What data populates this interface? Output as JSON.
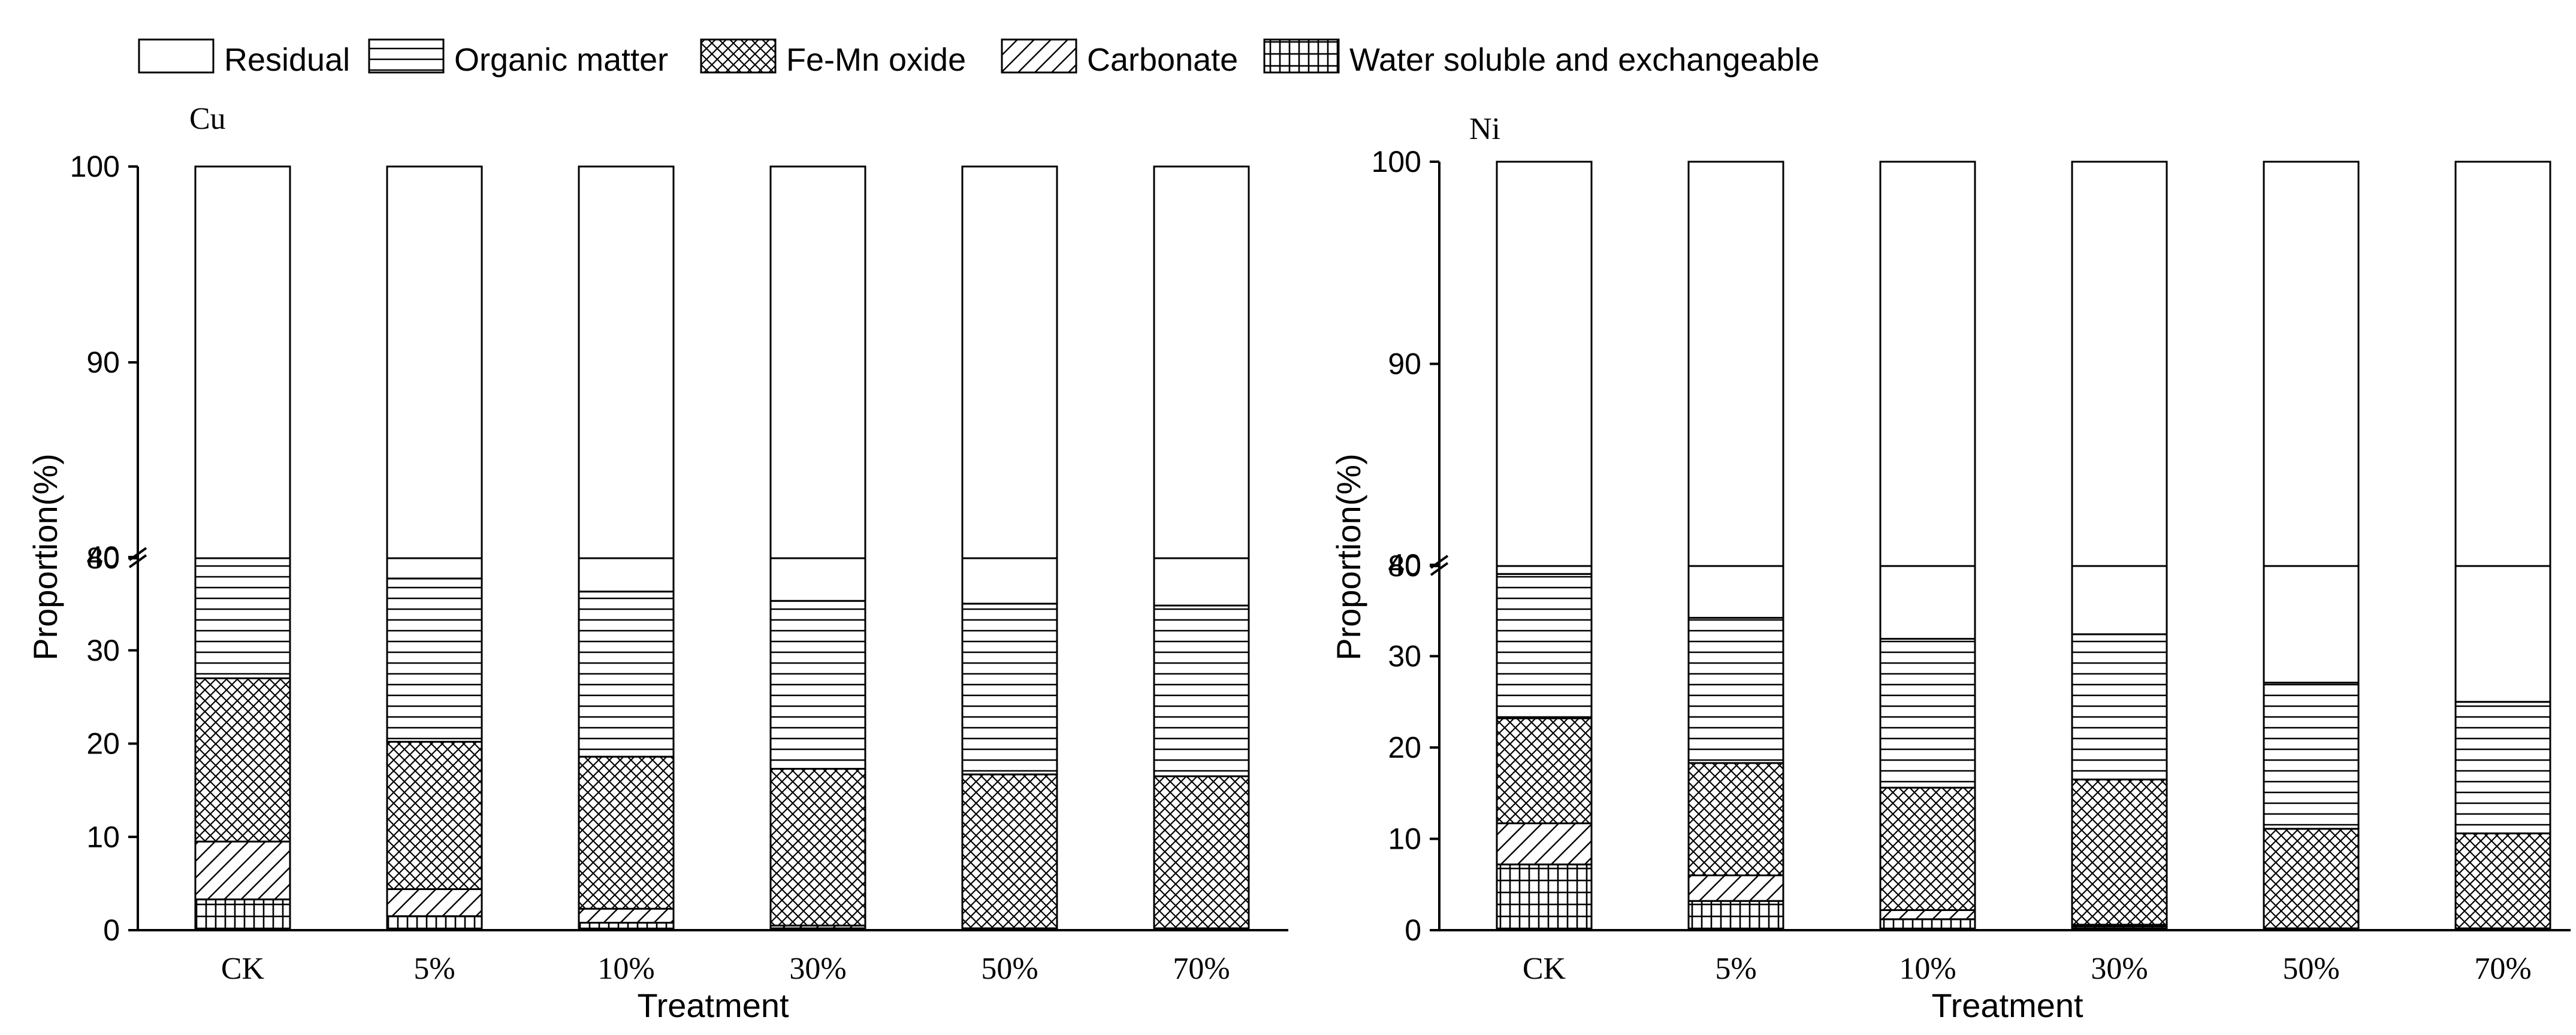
{
  "legend": [
    {
      "name": "Residual",
      "pattern": "blank"
    },
    {
      "name": "Organic matter",
      "pattern": "hlines"
    },
    {
      "name": "Fe-Mn oxide",
      "pattern": "crosshatch"
    },
    {
      "name": "Carbonate",
      "pattern": "fdiag"
    },
    {
      "name": "Water soluble and exchangeable",
      "pattern": "grid"
    }
  ],
  "chart_data": [
    {
      "type": "bar",
      "stacked": true,
      "title": "Cu",
      "xlabel": "Treatment",
      "ylabel": "Proportion(%)",
      "categories": [
        "CK",
        "5%",
        "10%",
        "30%",
        "50%",
        "70%"
      ],
      "axis_break": {
        "lower_range": [
          0,
          40
        ],
        "upper_range": [
          80,
          100
        ]
      },
      "lower_ticks": [
        0,
        10,
        20,
        30,
        40
      ],
      "upper_ticks": [
        80,
        90,
        100
      ],
      "upper_ticks_show": [
        "90",
        "100"
      ],
      "series": [
        {
          "name": "Water soluble and exchangeable",
          "values": [
            3.3,
            1.5,
            0.8,
            0.2,
            0.1,
            0.1
          ]
        },
        {
          "name": "Carbonate",
          "values": [
            6.2,
            2.9,
            1.5,
            0.3,
            0.1,
            0.1
          ]
        },
        {
          "name": "Fe-Mn oxide",
          "values": [
            17.5,
            15.8,
            16.3,
            16.8,
            16.5,
            16.3
          ]
        },
        {
          "name": "Organic matter",
          "values": [
            15.5,
            17.5,
            17.7,
            18.0,
            18.3,
            18.3
          ]
        },
        {
          "name": "Residual",
          "values": [
            57.5,
            62.3,
            63.7,
            64.7,
            65.0,
            65.2
          ]
        }
      ]
    },
    {
      "type": "bar",
      "stacked": true,
      "title": "Ni",
      "xlabel": "Treatment",
      "ylabel": "Proportion(%)",
      "categories": [
        "CK",
        "5%",
        "10%",
        "30%",
        "50%",
        "70%"
      ],
      "axis_break": {
        "lower_range": [
          0,
          40
        ],
        "upper_range": [
          80,
          100
        ]
      },
      "lower_ticks": [
        0,
        10,
        20,
        30,
        40
      ],
      "upper_ticks": [
        80,
        90,
        100
      ],
      "upper_ticks_show": [
        "90",
        "100"
      ],
      "series": [
        {
          "name": "Water soluble and exchangeable",
          "values": [
            7.2,
            3.2,
            1.2,
            0.4,
            0.1,
            0.1
          ]
        },
        {
          "name": "Carbonate",
          "values": [
            4.5,
            2.8,
            1.0,
            0.2,
            0.1,
            0.1
          ]
        },
        {
          "name": "Fe-Mn oxide",
          "values": [
            11.5,
            12.3,
            13.4,
            15.9,
            10.9,
            10.4
          ]
        },
        {
          "name": "Organic matter",
          "values": [
            15.8,
            15.9,
            16.3,
            15.9,
            16.0,
            14.4
          ]
        },
        {
          "name": "Residual",
          "values": [
            61.0,
            65.8,
            68.1,
            67.6,
            72.9,
            75.0
          ]
        }
      ]
    }
  ]
}
